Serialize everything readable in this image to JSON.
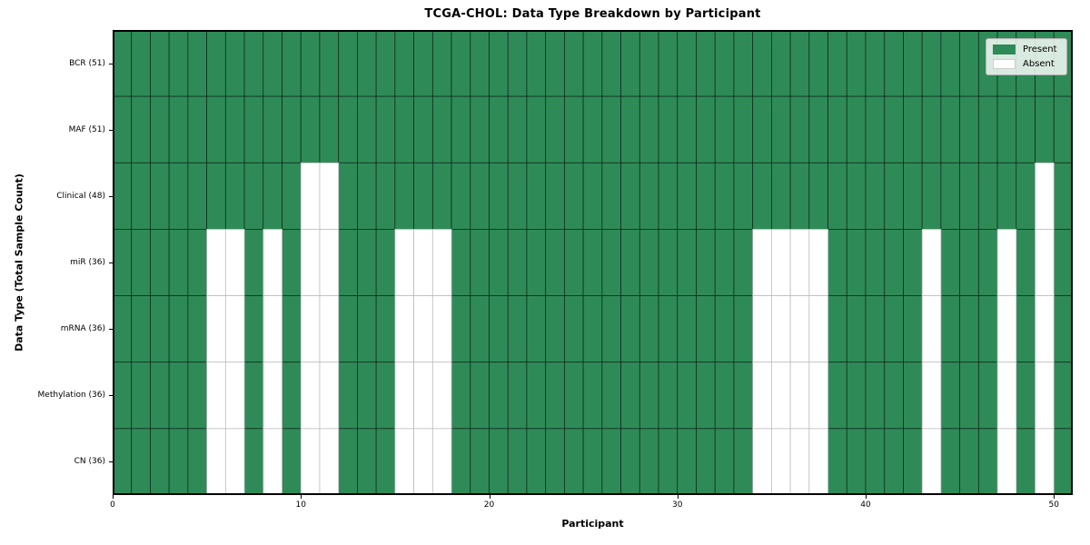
{
  "chart_data": {
    "type": "heatmap",
    "title": "TCGA-CHOL: Data Type Breakdown by Participant",
    "xlabel": "Participant",
    "ylabel": "Data Type (Total Sample Count)",
    "n_participants": 51,
    "x_range": [
      0,
      51
    ],
    "x_ticks": [
      0,
      10,
      20,
      30,
      40,
      50
    ],
    "grid": "cell-edges",
    "legend_position": "upper right",
    "legend_items": [
      {
        "label": "Present",
        "state": "present",
        "color": "#2e8b57"
      },
      {
        "label": "Absent",
        "state": "absent",
        "color": "#ffffff"
      }
    ],
    "colors": {
      "present": "#2e8b57",
      "absent": "#ffffff",
      "present_edge": "rgba(0,0,0,0.6)",
      "absent_edge": "#bdbdbd",
      "spine": "#000000"
    },
    "rows": [
      {
        "label": "BCR (51)",
        "data_type": "BCR",
        "present_count": 51,
        "absent_participants": []
      },
      {
        "label": "MAF (51)",
        "data_type": "MAF",
        "present_count": 51,
        "absent_participants": []
      },
      {
        "label": "Clinical (48)",
        "data_type": "Clinical",
        "present_count": 48,
        "absent_participants": [
          10,
          11,
          49
        ]
      },
      {
        "label": "miR (36)",
        "data_type": "miR",
        "present_count": 36,
        "absent_participants": [
          5,
          6,
          8,
          10,
          11,
          15,
          16,
          17,
          34,
          35,
          36,
          37,
          43,
          47,
          49
        ]
      },
      {
        "label": "mRNA (36)",
        "data_type": "mRNA",
        "present_count": 36,
        "absent_participants": [
          5,
          6,
          8,
          10,
          11,
          15,
          16,
          17,
          34,
          35,
          36,
          37,
          43,
          47,
          49
        ]
      },
      {
        "label": "Methylation (36)",
        "data_type": "Methylation",
        "present_count": 36,
        "absent_participants": [
          5,
          6,
          8,
          10,
          11,
          15,
          16,
          17,
          34,
          35,
          36,
          37,
          43,
          47,
          49
        ]
      },
      {
        "label": "CN (36)",
        "data_type": "CN",
        "present_count": 36,
        "absent_participants": [
          5,
          6,
          8,
          10,
          11,
          15,
          16,
          17,
          34,
          35,
          36,
          37,
          43,
          47,
          49
        ]
      }
    ]
  }
}
